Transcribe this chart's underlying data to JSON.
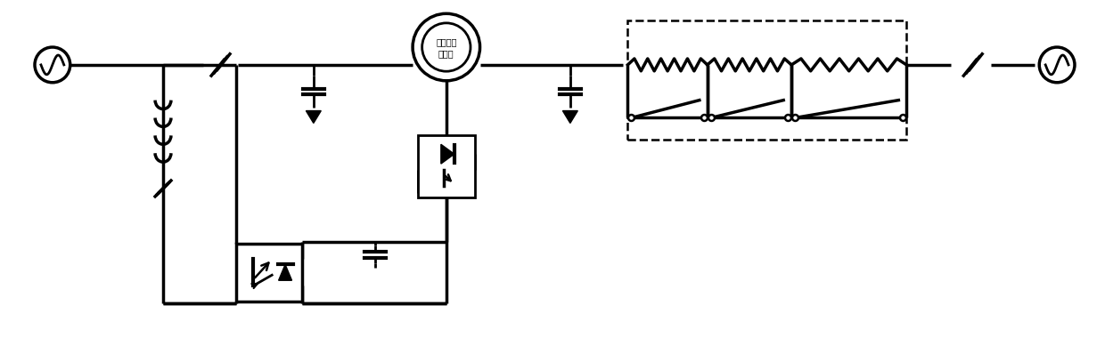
{
  "fig_width": 12.4,
  "fig_height": 4.07,
  "dpi": 100,
  "bg_color": "#ffffff",
  "line_color": "#000000",
  "lw": 2.0,
  "lw_thick": 2.5,
  "vft_text1": "可变频率",
  "vft_text2": "变压器"
}
